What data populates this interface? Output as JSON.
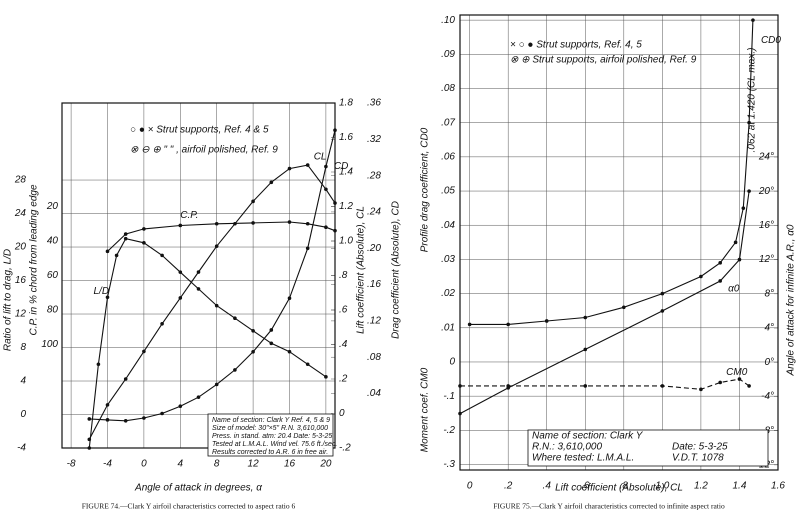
{
  "chart_data": [
    {
      "type": "line",
      "caption": "FIGURE 74.—Clark Y airfoil characteristics corrected to aspect ratio 6",
      "xlabel": "Angle of attack in degrees, α",
      "xlim": [
        -9,
        21
      ],
      "xticks": [
        -8,
        -4,
        0,
        4,
        8,
        12,
        16,
        20
      ],
      "grid": true,
      "axes": [
        {
          "label": "Ratio of lift to drag, L/D",
          "lim": [
            -4,
            37.2
          ],
          "ticks": [
            -4,
            0,
            4,
            8,
            12,
            16,
            20,
            24,
            28
          ]
        },
        {
          "label": "C.P. in % chord from leading edge",
          "lim": [
            160,
            -40
          ],
          "ticks": [
            20,
            40,
            60,
            80,
            100
          ]
        },
        {
          "label": "Lift coefficient (Absolute), CL",
          "lim": [
            -0.2,
            1.8
          ],
          "ticks": [
            {
              "value": -0.2,
              "label": "-.2"
            },
            0,
            {
              "value": 0.2,
              "label": ".2"
            },
            {
              "value": 0.4,
              "label": ".4"
            },
            {
              "value": 0.6,
              "label": ".6"
            },
            {
              "value": 0.8,
              "label": ".8"
            },
            {
              "value": 1.0,
              "label": "1.0"
            },
            1.2,
            1.4,
            1.6,
            1.8
          ]
        },
        {
          "label": "Drag coefficient (Absolute), CD",
          "lim": [
            -0.02,
            0.36
          ],
          "ticks": [
            {
              "value": 0.04,
              "label": ".04"
            },
            {
              "value": 0.08,
              "label": ".08"
            },
            {
              "value": 0.12,
              "label": ".12"
            },
            {
              "value": 0.16,
              "label": ".16"
            },
            {
              "value": 0.2,
              "label": ".20"
            },
            {
              "value": 0.24,
              "label": ".24"
            },
            {
              "value": 0.28,
              "label": ".28"
            },
            {
              "value": 0.32,
              "label": ".32"
            },
            {
              "value": 0.36,
              "label": ".36"
            }
          ]
        }
      ],
      "series": [
        {
          "name": "CL",
          "color": "#111",
          "axis": 2,
          "x": [
            -6,
            -4,
            -2,
            0,
            2,
            4,
            6,
            8,
            10,
            12,
            14,
            16,
            18,
            20,
            21
          ],
          "values": [
            -0.15,
            0.05,
            0.2,
            0.36,
            0.52,
            0.67,
            0.82,
            0.97,
            1.1,
            1.23,
            1.34,
            1.42,
            1.44,
            1.3,
            1.22
          ]
        },
        {
          "name": "CD",
          "color": "#111",
          "axis": 3,
          "x": [
            -6,
            -4,
            -2,
            0,
            2,
            4,
            6,
            8,
            10,
            12,
            14,
            16,
            18,
            20,
            21
          ],
          "values": [
            0.012,
            0.011,
            0.01,
            0.013,
            0.018,
            0.026,
            0.036,
            0.05,
            0.066,
            0.086,
            0.11,
            0.145,
            0.2,
            0.29,
            0.33
          ]
        },
        {
          "name": "L/D",
          "color": "#111",
          "axis": 0,
          "x": [
            -6,
            -5,
            -4,
            -3,
            -2,
            0,
            2,
            4,
            6,
            8,
            10,
            12,
            14,
            16,
            18,
            20
          ],
          "values": [
            -4,
            6,
            14,
            19,
            21,
            20.5,
            19,
            17,
            15,
            13,
            11.5,
            10,
            8.5,
            7.5,
            6,
            4.5
          ]
        },
        {
          "name": "C.P.",
          "color": "#111",
          "axis": 1,
          "x": [
            -4,
            -2,
            0,
            4,
            8,
            12,
            16,
            18,
            20,
            21
          ],
          "values": [
            46,
            36,
            33,
            31,
            30,
            29.5,
            29,
            30,
            32,
            34
          ]
        }
      ],
      "legend": [
        "○ ● × Strut supports, Ref. 4 & 5",
        "⊗ ⊖ ⊕ \" \" , airfoil polished, Ref. 9"
      ],
      "notes": [
        "Name of section: Clark Y   Ref. 4, 5 & 9",
        "Size of model: 30\"×5\"   R.N. 3,610,000",
        "Press. in stand. atm: 20.4   Date: 5-3-25",
        "Tested at L.M.A.L.   Wind vel. 75.6 ft./sec.",
        "Results corrected to A.R. 6 in free air."
      ]
    },
    {
      "type": "line",
      "caption": "FIGURE 75.—Clark Y airfoil characteristics corrected to infinite aspect ratio",
      "xlabel": "Lift coefficient (Absolute), CL",
      "xlim": [
        -0.05,
        1.6
      ],
      "xticks": [
        0,
        {
          "value": 0.2,
          "label": ".2"
        },
        {
          "value": 0.4,
          "label": ".4"
        },
        {
          "value": 0.6,
          "label": ".6"
        },
        {
          "value": 0.8,
          "label": ".8"
        },
        {
          "value": 1.0,
          "label": "1.0"
        },
        1.2,
        1.4,
        1.6
      ],
      "grid": true,
      "axes": [
        {
          "label": "Profile drag coefficient, CD0",
          "lim": [
            -0.0316,
            0.1015
          ],
          "ticks": [
            0,
            {
              "value": 0.01,
              "label": ".01"
            },
            {
              "value": 0.02,
              "label": ".02"
            },
            {
              "value": 0.03,
              "label": ".03"
            },
            {
              "value": 0.04,
              "label": ".04"
            },
            {
              "value": 0.05,
              "label": ".05"
            },
            {
              "value": 0.06,
              "label": ".06"
            },
            {
              "value": 0.07,
              "label": ".07"
            },
            {
              "value": 0.08,
              "label": ".08"
            },
            {
              "value": 0.09,
              "label": ".09"
            },
            {
              "value": 0.1,
              "label": ".10"
            }
          ]
        },
        {
          "label": "Moment coef. CM0",
          "lim": [
            -0.316,
            1.015
          ],
          "ticks": [
            {
              "value": -0.1,
              "label": "-.1"
            },
            {
              "value": -0.2,
              "label": "-.2"
            },
            {
              "value": -0.3,
              "label": "-.3"
            }
          ]
        },
        {
          "label": "Angle of attack for infinite A.R., α0",
          "lim": [
            -12.6,
            40.6
          ],
          "ticks": [
            {
              "value": -12,
              "label": "-12°"
            },
            {
              "value": -8,
              "label": "-8°"
            },
            {
              "value": -4,
              "label": "-4°"
            },
            {
              "value": 0,
              "label": "0°"
            },
            {
              "value": 4,
              "label": "4°"
            },
            {
              "value": 8,
              "label": "8°"
            },
            {
              "value": 12,
              "label": "12°"
            },
            {
              "value": 16,
              "label": "16°"
            },
            {
              "value": 20,
              "label": "20°"
            },
            {
              "value": 24,
              "label": "24°"
            }
          ]
        }
      ],
      "series": [
        {
          "name": "CD0",
          "color": "#111",
          "axis": 0,
          "x": [
            0,
            0.2,
            0.4,
            0.6,
            0.8,
            1.0,
            1.2,
            1.3,
            1.38,
            1.42,
            1.45,
            1.47
          ],
          "values": [
            0.011,
            0.011,
            0.012,
            0.013,
            0.016,
            0.02,
            0.025,
            0.029,
            0.035,
            0.045,
            0.07,
            0.1
          ]
        },
        {
          "name": "α0",
          "color": "#111",
          "axis": 2,
          "x": [
            -0.05,
            0.2,
            0.6,
            1.0,
            1.3,
            1.4,
            1.45
          ],
          "values": [
            -6,
            -3,
            1.5,
            6,
            9.5,
            12,
            20
          ]
        },
        {
          "name": "CM0",
          "color": "#111",
          "axis": 1,
          "dash": true,
          "x": [
            -0.05,
            0.2,
            0.6,
            1.0,
            1.2,
            1.3,
            1.4,
            1.45
          ],
          "values": [
            -0.07,
            -0.07,
            -0.07,
            -0.07,
            -0.08,
            -0.06,
            -0.05,
            -0.07
          ]
        }
      ],
      "legend": [
        "× ○ ● Strut supports, Ref. 4, 5",
        "⊗ ⊕ Strut supports, airfoil polished, Ref. 9"
      ],
      "annotations": [
        ".062 at 1.420 (CL max.)"
      ],
      "notes": [
        "Name of section: Clark Y",
        "R.N.: 3,610,000",
        "Where tested: L.M.A.L.",
        "Date: 5-3-25",
        "V.D.T. 1078"
      ]
    }
  ]
}
